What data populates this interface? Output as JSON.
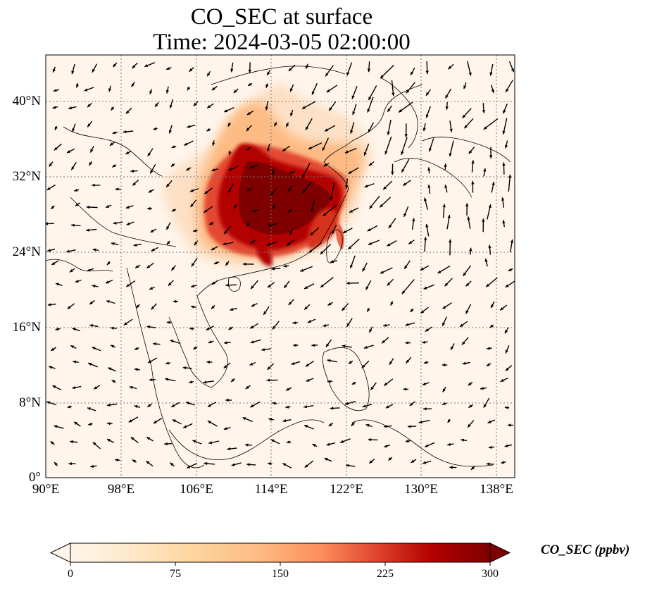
{
  "title": {
    "line1": "CO_SEC at surface",
    "line2": "Time: 2024-03-05 02:00:00"
  },
  "axes": {
    "lon_ticks": [
      "90°E",
      "98°E",
      "106°E",
      "114°E",
      "122°E",
      "130°E",
      "138°E"
    ],
    "lat_ticks": [
      "40°N",
      "32°N",
      "24°N",
      "16°N",
      "8°N",
      "0°"
    ],
    "lon_range": [
      90,
      140
    ],
    "lat_range": [
      0,
      45
    ],
    "gridlines": "dotted"
  },
  "colorbar": {
    "label": "CO_SEC (ppbv)",
    "ticks": [
      "0",
      "75",
      "150",
      "225",
      "300"
    ],
    "extend": "both",
    "colormap": "OrRd-like",
    "colors": [
      "#fff5eb",
      "#fdd49e",
      "#fdbb84",
      "#fc8d59",
      "#ef6548",
      "#d7301f",
      "#b30000",
      "#7f0000"
    ]
  },
  "map": {
    "background_color": "#fff5eb",
    "coastline_color": "#000000",
    "arrow_color": "#000000"
  }
}
